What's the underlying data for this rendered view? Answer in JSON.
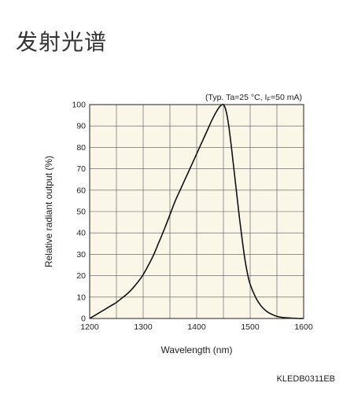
{
  "page": {
    "title": "发射光谱",
    "figure_id": "KLEDB0311EB"
  },
  "chart_data": {
    "type": "line",
    "title": "",
    "annotation": "(Typ. Ta=25 °C, I",
    "annotation_sub": "F",
    "annotation_tail": "=50 mA)",
    "xlabel": "Wavelength (nm)",
    "ylabel": "Relative radiant output (%)",
    "xlim": [
      1200,
      1600
    ],
    "ylim": [
      0,
      100
    ],
    "xticks": [
      1200,
      1300,
      1400,
      1500,
      1600
    ],
    "yticks": [
      0,
      10,
      20,
      30,
      40,
      50,
      60,
      70,
      80,
      90,
      100
    ],
    "x_minor_step": 50,
    "y_minor_step": 10,
    "grid": true,
    "background": "#faf7e8",
    "line_color": "#111111",
    "series": [
      {
        "x": [
          1200,
          1210,
          1220,
          1230,
          1240,
          1250,
          1260,
          1270,
          1280,
          1290,
          1300,
          1310,
          1320,
          1330,
          1340,
          1350,
          1360,
          1370,
          1380,
          1390,
          1400,
          1410,
          1420,
          1430,
          1440,
          1445,
          1450,
          1455,
          1460,
          1465,
          1470,
          1475,
          1480,
          1485,
          1490,
          1495,
          1500,
          1510,
          1520,
          1530,
          1540,
          1550,
          1560,
          1570,
          1580,
          1590,
          1600
        ],
        "y": [
          0,
          1.5,
          3,
          4.5,
          6,
          7.5,
          9.5,
          11.5,
          14,
          17,
          20.5,
          25,
          30,
          36,
          42,
          48.5,
          55,
          60.5,
          66,
          71.5,
          77,
          82.5,
          88,
          93.5,
          98,
          99.5,
          100,
          97,
          90,
          80,
          69,
          58,
          47,
          37,
          28,
          21,
          16,
          10,
          6,
          3.5,
          2,
          1,
          0.5,
          0.3,
          0.1,
          0,
          0
        ]
      }
    ]
  }
}
